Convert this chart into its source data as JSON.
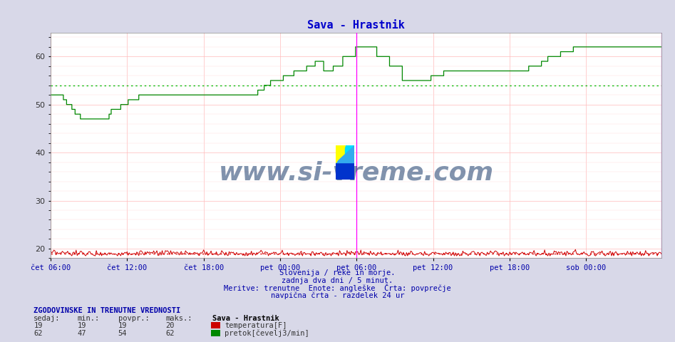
{
  "title": "Sava - Hrastnik",
  "title_color": "#0000cc",
  "bg_color": "#d8d8e8",
  "plot_bg_color": "#ffffff",
  "grid_color_major": "#ffbbbb",
  "grid_color_minor": "#ffdddd",
  "ylim": [
    18,
    65
  ],
  "yticks": [
    20,
    30,
    40,
    50,
    60
  ],
  "xlabel_color": "#0000aa",
  "xtick_labels": [
    "čet 06:00",
    "čet 12:00",
    "čet 18:00",
    "pet 00:00",
    "pet 06:00",
    "pet 12:00",
    "pet 18:00",
    "sob 00:00"
  ],
  "xtick_positions": [
    0,
    72,
    144,
    216,
    288,
    360,
    432,
    504
  ],
  "total_points": 576,
  "vline_pos": 288,
  "vline_color": "#ff00ff",
  "avg_flow": 54,
  "avg_temp": 19,
  "flow_color": "#008800",
  "temp_color": "#cc0000",
  "avg_flow_color": "#00bb00",
  "avg_temp_color": "#dd0000",
  "watermark": "www.si-vreme.com",
  "watermark_color": "#1a3a6b",
  "footer_lines": [
    "Slovenija / reke in morje.",
    "zadnja dva dni / 5 minut.",
    "Meritve: trenutne  Enote: angleške  Črta: povprečje",
    "navpična črta - razdelek 24 ur"
  ],
  "footer_color": "#0000aa",
  "legend_title": "Sava - Hrastnik",
  "legend_items": [
    {
      "label": "temperatura[F]",
      "color": "#cc0000"
    },
    {
      "label": "pretok[čevelj3/min]",
      "color": "#008800"
    }
  ],
  "stats_header": "ZGODOVINSKE IN TRENUTNE VREDNOSTI",
  "stats_cols": [
    "sedaj:",
    "min.:",
    "povpr.:",
    "maks.:"
  ],
  "stats_rows": [
    [
      19,
      19,
      19,
      20
    ],
    [
      62,
      47,
      54,
      62
    ]
  ],
  "flow_data": [
    52,
    52,
    52,
    52,
    52,
    52,
    52,
    52,
    52,
    52,
    52,
    52,
    51,
    51,
    51,
    50,
    50,
    50,
    50,
    50,
    49,
    49,
    49,
    48,
    48,
    48,
    48,
    48,
    47,
    47,
    47,
    47,
    47,
    47,
    47,
    47,
    47,
    47,
    47,
    47,
    47,
    47,
    47,
    47,
    47,
    47,
    47,
    47,
    47,
    47,
    47,
    47,
    47,
    47,
    47,
    48,
    48,
    49,
    49,
    49,
    49,
    49,
    49,
    49,
    49,
    49,
    50,
    50,
    50,
    50,
    50,
    50,
    50,
    51,
    51,
    51,
    51,
    51,
    51,
    51,
    51,
    51,
    51,
    52,
    52,
    52,
    52,
    52,
    52,
    52,
    52,
    52,
    52,
    52,
    52,
    52,
    52,
    52,
    52,
    52,
    52,
    52,
    52,
    52,
    52,
    52,
    52,
    52,
    52,
    52,
    52,
    52,
    52,
    52,
    52,
    52,
    52,
    52,
    52,
    52,
    52,
    52,
    52,
    52,
    52,
    52,
    52,
    52,
    52,
    52,
    52,
    52,
    52,
    52,
    52,
    52,
    52,
    52,
    52,
    52,
    52,
    52,
    52,
    52,
    52,
    52,
    52,
    52,
    52,
    52,
    52,
    52,
    52,
    52,
    52,
    52,
    52,
    52,
    52,
    52,
    52,
    52,
    52,
    52,
    52,
    52,
    52,
    52,
    52,
    52,
    52,
    52,
    52,
    52,
    52,
    52,
    52,
    52,
    52,
    52,
    52,
    52,
    52,
    52,
    52,
    52,
    52,
    52,
    52,
    52,
    52,
    52,
    52,
    52,
    52,
    53,
    53,
    53,
    53,
    53,
    53,
    54,
    54,
    54,
    54,
    54,
    54,
    55,
    55,
    55,
    55,
    55,
    55,
    55,
    55,
    55,
    55,
    55,
    55,
    56,
    56,
    56,
    56,
    56,
    56,
    56,
    56,
    56,
    56,
    57,
    57,
    57,
    57,
    57,
    57,
    57,
    57,
    57,
    57,
    57,
    57,
    58,
    58,
    58,
    58,
    58,
    58,
    58,
    58,
    59,
    59,
    59,
    59,
    59,
    59,
    59,
    59,
    57,
    57,
    57,
    57,
    57,
    57,
    57,
    57,
    57,
    58,
    58,
    58,
    58,
    58,
    58,
    58,
    58,
    58,
    60,
    60,
    60,
    60,
    60,
    60,
    60,
    60,
    60,
    60,
    60,
    60,
    62,
    62,
    62,
    62,
    62,
    62,
    62,
    62,
    62,
    62,
    62,
    62,
    62,
    62,
    62,
    62,
    62,
    62,
    62,
    62,
    60,
    60,
    60,
    60,
    60,
    60,
    60,
    60,
    60,
    60,
    60,
    60,
    58,
    58,
    58,
    58,
    58,
    58,
    58,
    58,
    58,
    58,
    58,
    58,
    55,
    55,
    55,
    55,
    55,
    55,
    55,
    55,
    55,
    55,
    55,
    55,
    55,
    55,
    55,
    55,
    55,
    55,
    55,
    55,
    55,
    55,
    55,
    55,
    55,
    55,
    55,
    56,
    56,
    56,
    56,
    56,
    56,
    56,
    56,
    56,
    56,
    56,
    56,
    57,
    57,
    57,
    57,
    57,
    57,
    57,
    57,
    57,
    57,
    57,
    57,
    57,
    57,
    57,
    57,
    57,
    57,
    57,
    57,
    57,
    57,
    57,
    57,
    57,
    57,
    57,
    57,
    57,
    57,
    57,
    57,
    57,
    57,
    57,
    57,
    57,
    57,
    57,
    57,
    57,
    57,
    57,
    57,
    57,
    57,
    57,
    57,
    57,
    57,
    57,
    57,
    57,
    57,
    57,
    57,
    57,
    57,
    57,
    57,
    57,
    57,
    57,
    57,
    57,
    57,
    57,
    57,
    57,
    57,
    57,
    57,
    57,
    57,
    57,
    57,
    57,
    57,
    57,
    57,
    58,
    58,
    58,
    58,
    58,
    58,
    58,
    58,
    58,
    58,
    58,
    58,
    59,
    59,
    59,
    59,
    59,
    59,
    60,
    60,
    60,
    60,
    60,
    60,
    60,
    60,
    60,
    60,
    60,
    60,
    61,
    61,
    61,
    61,
    61,
    61,
    61,
    61,
    61,
    61,
    61,
    61,
    62,
    62,
    62,
    62,
    62,
    62,
    62,
    62,
    62,
    62,
    62,
    62,
    62,
    62,
    62,
    62,
    62,
    62,
    62,
    62,
    62
  ],
  "temp_data": 19
}
